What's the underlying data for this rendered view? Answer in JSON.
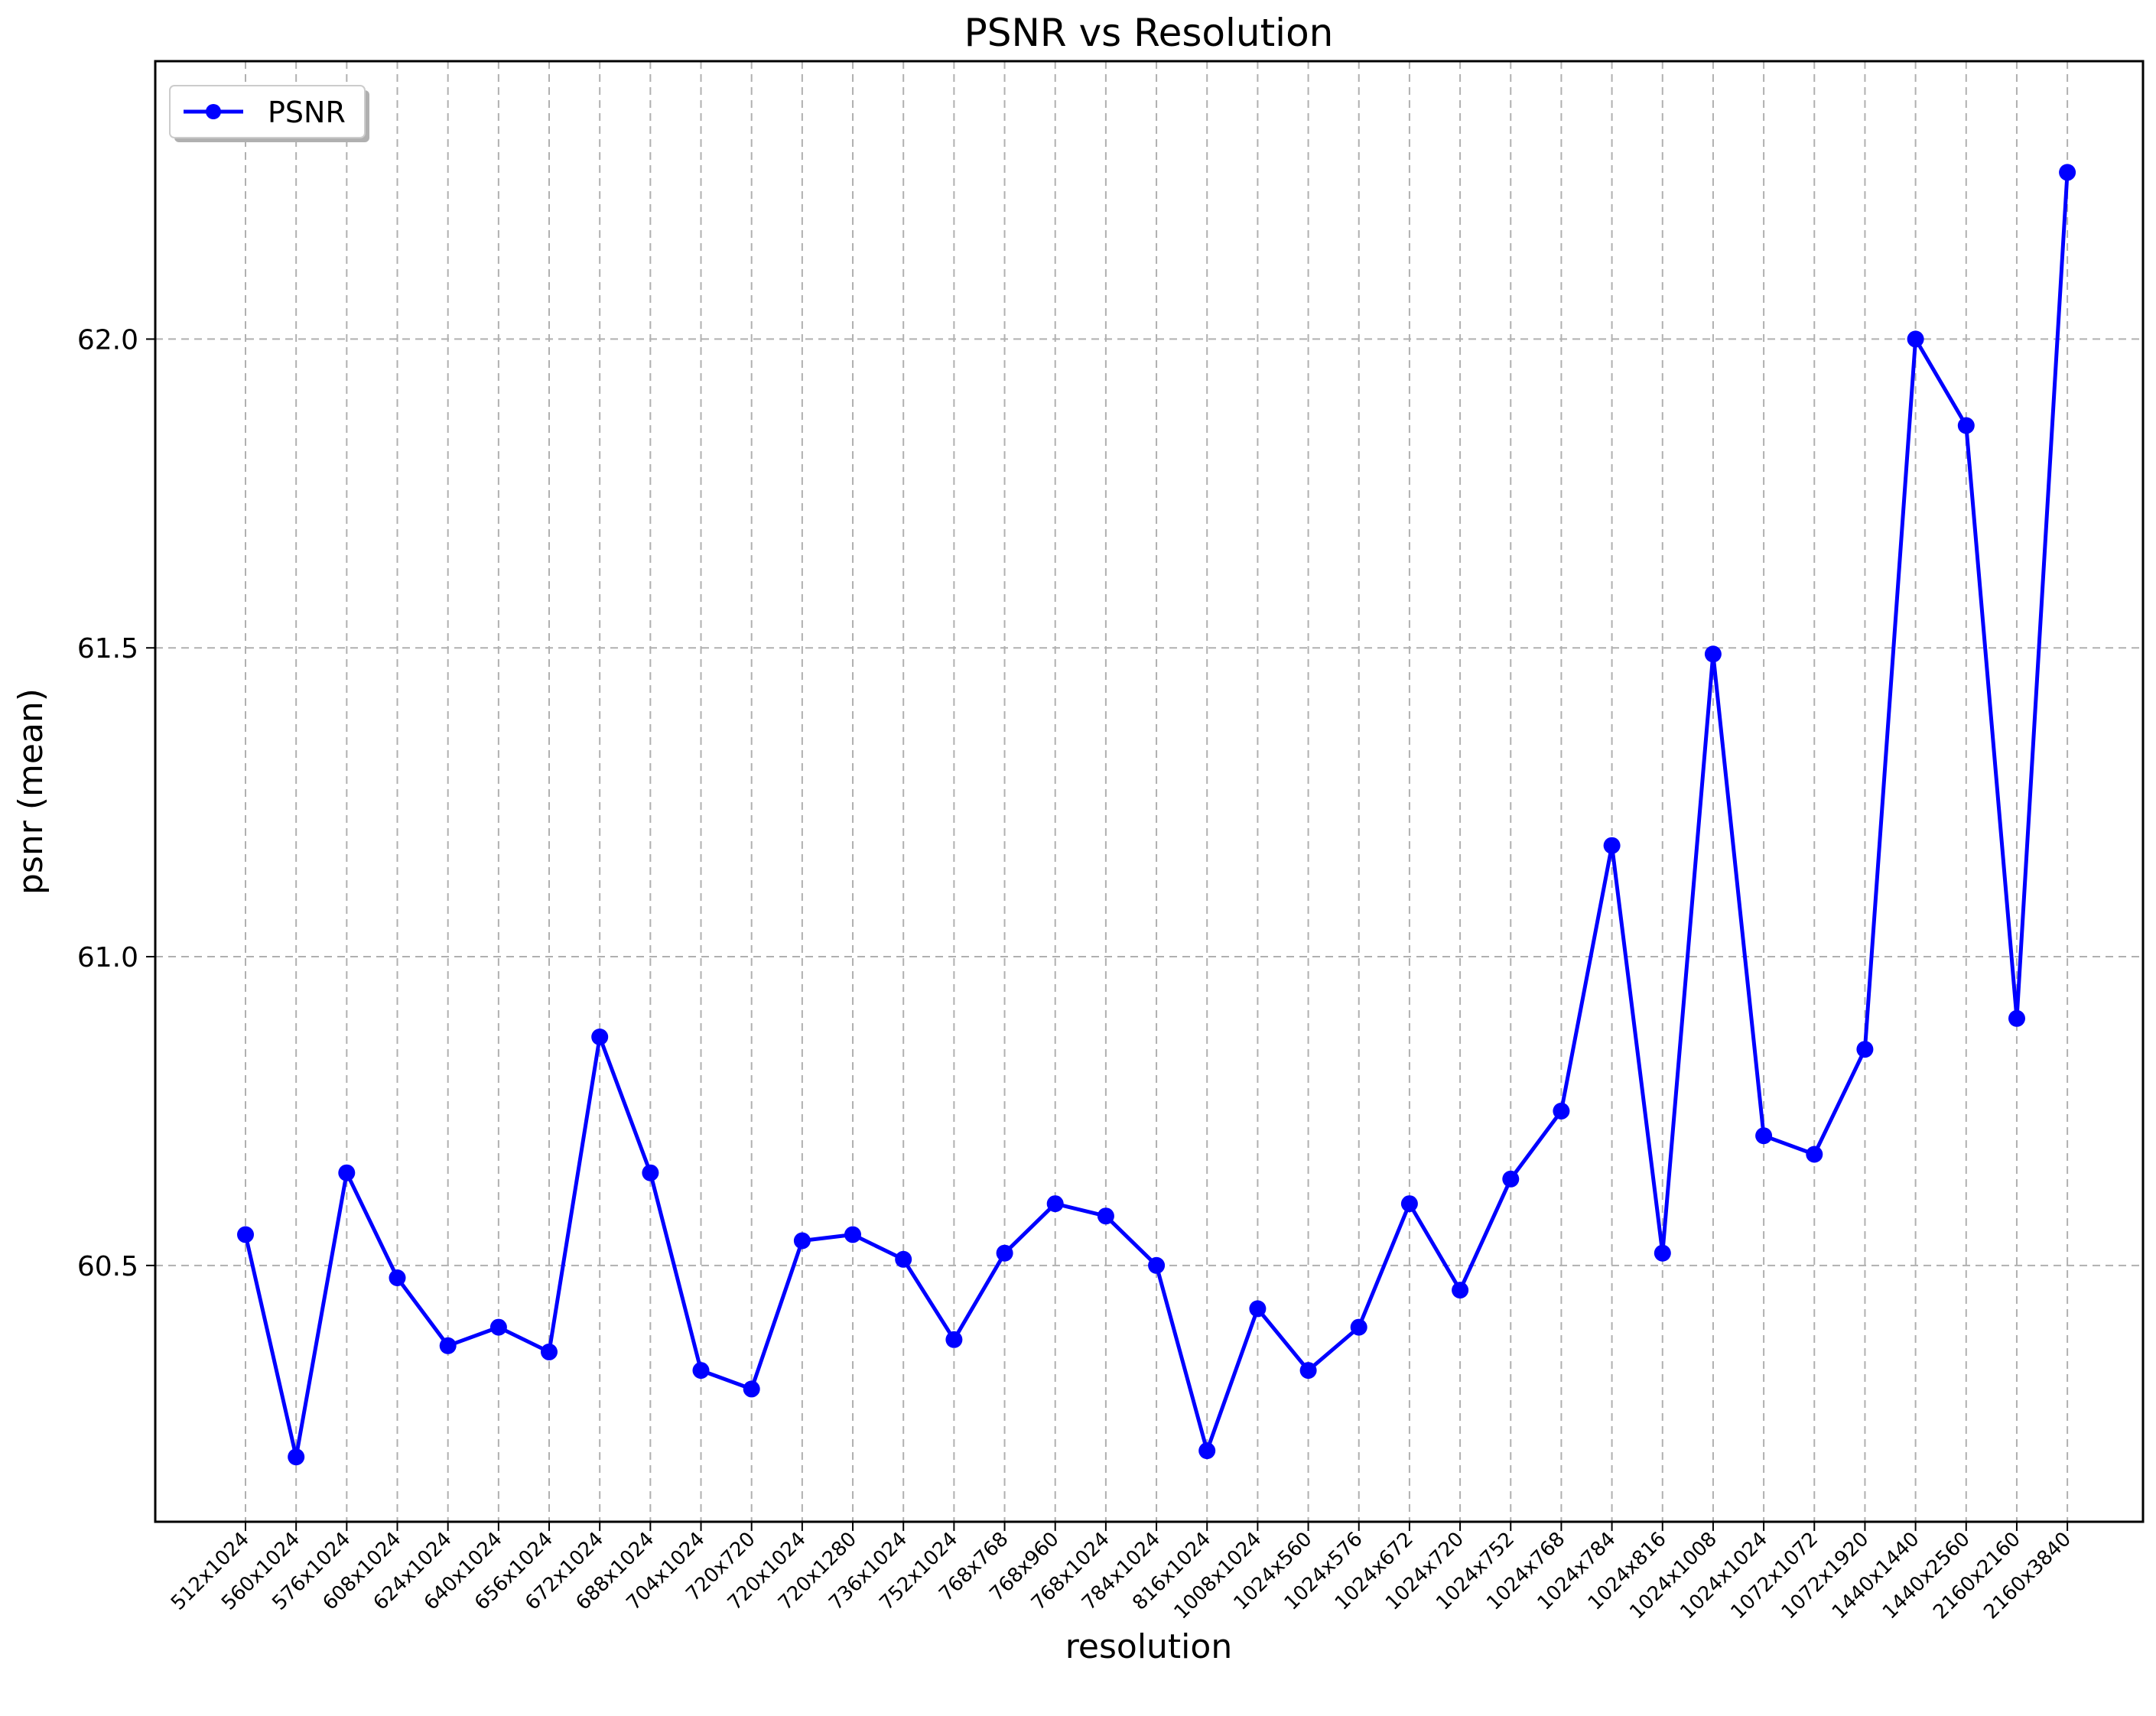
{
  "chart_data": {
    "type": "line",
    "title": "PSNR vs Resolution",
    "xlabel": "resolution",
    "ylabel": "psnr (mean)",
    "ylim": [
      60.085,
      62.45
    ],
    "yticks": [
      60.5,
      61.0,
      61.5,
      62.0
    ],
    "ytick_labels": [
      "60.5",
      "61.0",
      "61.5",
      "62.0"
    ],
    "grid": true,
    "legend_position": "top-left",
    "categories": [
      "512x1024",
      "560x1024",
      "576x1024",
      "608x1024",
      "624x1024",
      "640x1024",
      "656x1024",
      "672x1024",
      "688x1024",
      "704x1024",
      "720x720",
      "720x1024",
      "720x1280",
      "736x1024",
      "752x1024",
      "768x768",
      "768x960",
      "768x1024",
      "784x1024",
      "816x1024",
      "1008x1024",
      "1024x560",
      "1024x576",
      "1024x672",
      "1024x720",
      "1024x752",
      "1024x768",
      "1024x784",
      "1024x816",
      "1024x1008",
      "1024x1024",
      "1072x1072",
      "1072x1920",
      "1440x1440",
      "1440x2560",
      "2160x2160",
      "2160x3840"
    ],
    "series": [
      {
        "name": "PSNR",
        "color": "#0000ff",
        "marker": "circle",
        "values": [
          60.55,
          60.19,
          60.65,
          60.48,
          60.37,
          60.4,
          60.36,
          60.87,
          60.65,
          60.33,
          60.3,
          60.54,
          60.55,
          60.51,
          60.38,
          60.52,
          60.6,
          60.58,
          60.5,
          60.2,
          60.43,
          60.33,
          60.4,
          60.6,
          60.46,
          60.64,
          60.75,
          61.18,
          60.52,
          61.49,
          60.71,
          60.68,
          60.85,
          62.0,
          61.86,
          60.9,
          62.27
        ]
      }
    ]
  }
}
